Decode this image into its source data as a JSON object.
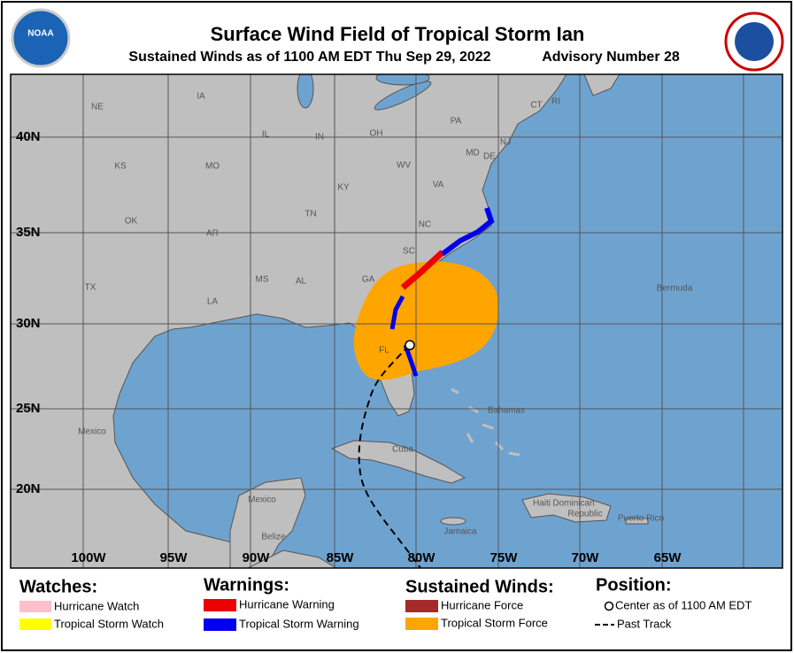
{
  "header": {
    "logo_left": "NOAA",
    "title": "Surface Wind Field of Tropical Storm Ian",
    "subtitle": "Sustained Winds as of 1100 AM EDT Thu Sep 29, 2022",
    "advisory": "Advisory Number 28"
  },
  "map": {
    "lat_labels": [
      "40N",
      "35N",
      "30N",
      "25N",
      "20N"
    ],
    "lon_labels": [
      "100W",
      "95W",
      "90W",
      "85W",
      "80W",
      "75W",
      "70W",
      "65W"
    ],
    "places": [
      "NE",
      "IA",
      "IL",
      "IN",
      "OH",
      "PA",
      "CT",
      "RI",
      "NJ",
      "MD",
      "DE",
      "KS",
      "MO",
      "WV",
      "KY",
      "VA",
      "OK",
      "AR",
      "TN",
      "NC",
      "SC",
      "TX",
      "MS",
      "AL",
      "GA",
      "LA",
      "FL",
      "Bermuda",
      "Bahamas",
      "Mexico",
      "Cuba",
      "Mexico",
      "Belize",
      "Haiti",
      "Dominican",
      "Republic",
      "Puerto Rico",
      "Jamaica"
    ]
  },
  "legend": {
    "watches": {
      "title": "Watches:",
      "items": [
        "Hurricane Watch",
        "Tropical Storm Watch"
      ]
    },
    "warnings": {
      "title": "Warnings:",
      "items": [
        "Hurricane Warning",
        "Tropical Storm Warning"
      ]
    },
    "winds": {
      "title": "Sustained Winds:",
      "items": [
        "Hurricane Force",
        "Tropical Storm Force"
      ]
    },
    "position": {
      "title": "Position:",
      "items": [
        "Center as of 1100 AM EDT",
        "Past Track"
      ]
    }
  }
}
